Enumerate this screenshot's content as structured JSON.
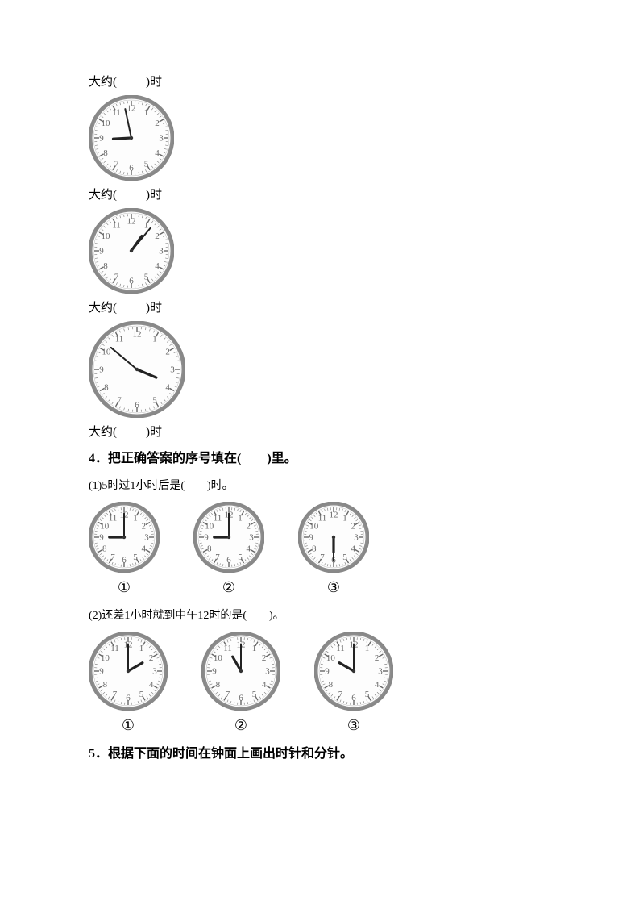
{
  "section3": {
    "label_template_pre": "大约(",
    "label_template_post": ")时",
    "clocks": [
      {
        "size": 106,
        "hour_angle": 267,
        "minute_angle": 348
      },
      {
        "size": 106,
        "hour_angle": 35,
        "minute_angle": 40
      },
      {
        "size": 120,
        "hour_angle": 113,
        "minute_angle": 310
      }
    ],
    "trailing_label_pre": "大约(",
    "trailing_label_post": ")时"
  },
  "q4": {
    "heading": "4．把正确答案的序号填在(　　)里。",
    "sub1": {
      "text": "(1)5时过1小时后是(　　)时。",
      "clocks": [
        {
          "size": 88,
          "hour_angle": 270,
          "minute_angle": 0,
          "opt": "①"
        },
        {
          "size": 88,
          "hour_angle": 270,
          "minute_angle": 0,
          "opt": "②"
        },
        {
          "size": 88,
          "hour_angle": 180,
          "minute_angle": 180,
          "opt": "③"
        }
      ]
    },
    "sub2": {
      "text": "(2)还差1小时就到中午12时的是(　　)。",
      "clocks": [
        {
          "size": 98,
          "hour_angle": 60,
          "minute_angle": 0,
          "opt": "①"
        },
        {
          "size": 98,
          "hour_angle": 330,
          "minute_angle": 0,
          "opt": "②"
        },
        {
          "size": 98,
          "hour_angle": 300,
          "minute_angle": 0,
          "opt": "③"
        }
      ]
    }
  },
  "q5": {
    "heading": "5．根据下面的时间在钟面上画出时针和分针。"
  },
  "clock_style": {
    "rim_outer": "#cccccc",
    "rim_inner": "#888888",
    "face": "#fdfdfd",
    "num_color": "#666666",
    "tick_color": "#888888",
    "hand_color": "#222222",
    "numerals": [
      "12",
      "1",
      "2",
      "3",
      "4",
      "5",
      "6",
      "7",
      "8",
      "9",
      "10",
      "11"
    ]
  }
}
